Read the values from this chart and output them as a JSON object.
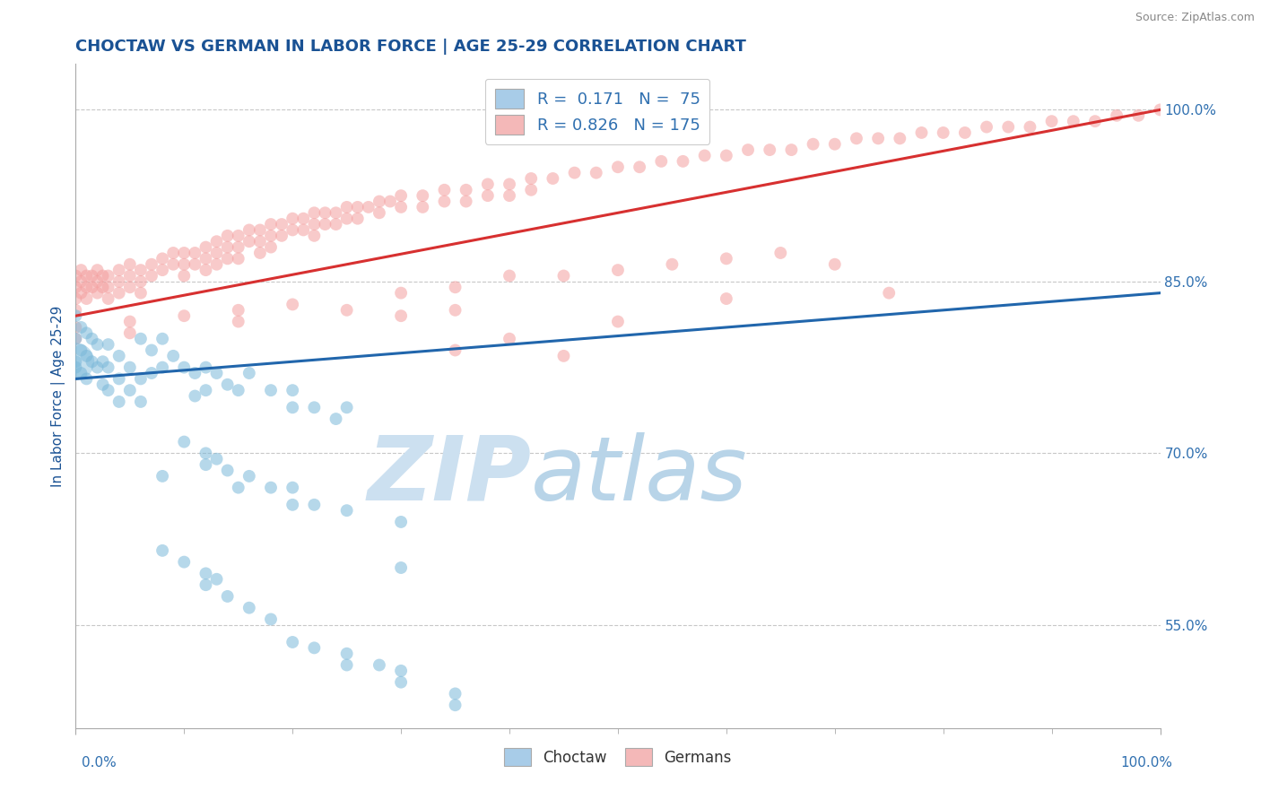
{
  "title": "CHOCTAW VS GERMAN IN LABOR FORCE | AGE 25-29 CORRELATION CHART",
  "source_text": "Source: ZipAtlas.com",
  "ylabel": "In Labor Force | Age 25-29",
  "xlim": [
    0.0,
    1.0
  ],
  "ylim": [
    0.46,
    1.04
  ],
  "yticks": [
    0.55,
    0.7,
    0.85,
    1.0
  ],
  "ytick_labels": [
    "55.0%",
    "70.0%",
    "85.0%",
    "100.0%"
  ],
  "xtick_labels": [
    "0.0%",
    "100.0%"
  ],
  "xticks": [
    0.0,
    1.0
  ],
  "choctaw_R": 0.171,
  "choctaw_N": 75,
  "german_R": 0.826,
  "german_N": 175,
  "choctaw_color": "#7ab8d9",
  "german_color": "#f4a0a0",
  "choctaw_line_color": "#2166ac",
  "german_line_color": "#d73030",
  "choctaw_legend_color": "#a8cce8",
  "german_legend_color": "#f4b8b8",
  "watermark_zip": "ZIP",
  "watermark_atlas": "atlas",
  "watermark_color": "#cce0f0",
  "background_color": "#ffffff",
  "grid_color": "#c8c8c8",
  "title_color": "#1a5294",
  "axis_label_color": "#1a5294",
  "tick_label_color": "#3070b0",
  "legend_text_color": "#3070b0",
  "choctaw_scatter": [
    [
      0.0,
      0.82
    ],
    [
      0.0,
      0.8
    ],
    [
      0.0,
      0.78
    ],
    [
      0.0,
      0.775
    ],
    [
      0.005,
      0.81
    ],
    [
      0.005,
      0.79
    ],
    [
      0.005,
      0.77
    ],
    [
      0.01,
      0.805
    ],
    [
      0.01,
      0.785
    ],
    [
      0.01,
      0.765
    ],
    [
      0.015,
      0.8
    ],
    [
      0.015,
      0.78
    ],
    [
      0.02,
      0.795
    ],
    [
      0.02,
      0.775
    ],
    [
      0.025,
      0.78
    ],
    [
      0.025,
      0.76
    ],
    [
      0.03,
      0.795
    ],
    [
      0.03,
      0.775
    ],
    [
      0.03,
      0.755
    ],
    [
      0.04,
      0.785
    ],
    [
      0.04,
      0.765
    ],
    [
      0.04,
      0.745
    ],
    [
      0.05,
      0.775
    ],
    [
      0.05,
      0.755
    ],
    [
      0.06,
      0.8
    ],
    [
      0.06,
      0.765
    ],
    [
      0.06,
      0.745
    ],
    [
      0.07,
      0.79
    ],
    [
      0.07,
      0.77
    ],
    [
      0.08,
      0.8
    ],
    [
      0.08,
      0.775
    ],
    [
      0.09,
      0.785
    ],
    [
      0.1,
      0.775
    ],
    [
      0.11,
      0.77
    ],
    [
      0.11,
      0.75
    ],
    [
      0.12,
      0.775
    ],
    [
      0.12,
      0.755
    ],
    [
      0.13,
      0.77
    ],
    [
      0.14,
      0.76
    ],
    [
      0.15,
      0.755
    ],
    [
      0.16,
      0.77
    ],
    [
      0.18,
      0.755
    ],
    [
      0.2,
      0.755
    ],
    [
      0.2,
      0.74
    ],
    [
      0.22,
      0.74
    ],
    [
      0.24,
      0.73
    ],
    [
      0.25,
      0.74
    ],
    [
      0.08,
      0.68
    ],
    [
      0.1,
      0.71
    ],
    [
      0.12,
      0.7
    ],
    [
      0.12,
      0.69
    ],
    [
      0.13,
      0.695
    ],
    [
      0.14,
      0.685
    ],
    [
      0.15,
      0.67
    ],
    [
      0.16,
      0.68
    ],
    [
      0.18,
      0.67
    ],
    [
      0.2,
      0.67
    ],
    [
      0.2,
      0.655
    ],
    [
      0.22,
      0.655
    ],
    [
      0.25,
      0.65
    ],
    [
      0.3,
      0.64
    ],
    [
      0.3,
      0.6
    ],
    [
      0.08,
      0.615
    ],
    [
      0.1,
      0.605
    ],
    [
      0.12,
      0.595
    ],
    [
      0.12,
      0.585
    ],
    [
      0.13,
      0.59
    ],
    [
      0.14,
      0.575
    ],
    [
      0.16,
      0.565
    ],
    [
      0.18,
      0.555
    ],
    [
      0.2,
      0.535
    ],
    [
      0.22,
      0.53
    ],
    [
      0.25,
      0.525
    ],
    [
      0.25,
      0.515
    ],
    [
      0.28,
      0.515
    ],
    [
      0.3,
      0.51
    ],
    [
      0.3,
      0.5
    ],
    [
      0.35,
      0.49
    ],
    [
      0.35,
      0.48
    ]
  ],
  "german_scatter": [
    [
      0.0,
      0.855
    ],
    [
      0.0,
      0.845
    ],
    [
      0.0,
      0.835
    ],
    [
      0.0,
      0.825
    ],
    [
      0.005,
      0.86
    ],
    [
      0.005,
      0.85
    ],
    [
      0.005,
      0.84
    ],
    [
      0.01,
      0.855
    ],
    [
      0.01,
      0.845
    ],
    [
      0.01,
      0.835
    ],
    [
      0.015,
      0.855
    ],
    [
      0.015,
      0.845
    ],
    [
      0.02,
      0.86
    ],
    [
      0.02,
      0.85
    ],
    [
      0.02,
      0.84
    ],
    [
      0.025,
      0.855
    ],
    [
      0.025,
      0.845
    ],
    [
      0.03,
      0.855
    ],
    [
      0.03,
      0.845
    ],
    [
      0.03,
      0.835
    ],
    [
      0.04,
      0.86
    ],
    [
      0.04,
      0.85
    ],
    [
      0.04,
      0.84
    ],
    [
      0.05,
      0.865
    ],
    [
      0.05,
      0.855
    ],
    [
      0.05,
      0.845
    ],
    [
      0.06,
      0.86
    ],
    [
      0.06,
      0.85
    ],
    [
      0.06,
      0.84
    ],
    [
      0.07,
      0.865
    ],
    [
      0.07,
      0.855
    ],
    [
      0.08,
      0.87
    ],
    [
      0.08,
      0.86
    ],
    [
      0.09,
      0.875
    ],
    [
      0.09,
      0.865
    ],
    [
      0.1,
      0.875
    ],
    [
      0.1,
      0.865
    ],
    [
      0.1,
      0.855
    ],
    [
      0.11,
      0.875
    ],
    [
      0.11,
      0.865
    ],
    [
      0.12,
      0.88
    ],
    [
      0.12,
      0.87
    ],
    [
      0.12,
      0.86
    ],
    [
      0.13,
      0.885
    ],
    [
      0.13,
      0.875
    ],
    [
      0.13,
      0.865
    ],
    [
      0.14,
      0.89
    ],
    [
      0.14,
      0.88
    ],
    [
      0.14,
      0.87
    ],
    [
      0.15,
      0.89
    ],
    [
      0.15,
      0.88
    ],
    [
      0.15,
      0.87
    ],
    [
      0.16,
      0.895
    ],
    [
      0.16,
      0.885
    ],
    [
      0.17,
      0.895
    ],
    [
      0.17,
      0.885
    ],
    [
      0.17,
      0.875
    ],
    [
      0.18,
      0.9
    ],
    [
      0.18,
      0.89
    ],
    [
      0.18,
      0.88
    ],
    [
      0.19,
      0.9
    ],
    [
      0.19,
      0.89
    ],
    [
      0.2,
      0.905
    ],
    [
      0.2,
      0.895
    ],
    [
      0.21,
      0.905
    ],
    [
      0.21,
      0.895
    ],
    [
      0.22,
      0.91
    ],
    [
      0.22,
      0.9
    ],
    [
      0.22,
      0.89
    ],
    [
      0.23,
      0.91
    ],
    [
      0.23,
      0.9
    ],
    [
      0.24,
      0.91
    ],
    [
      0.24,
      0.9
    ],
    [
      0.25,
      0.915
    ],
    [
      0.25,
      0.905
    ],
    [
      0.26,
      0.915
    ],
    [
      0.26,
      0.905
    ],
    [
      0.27,
      0.915
    ],
    [
      0.28,
      0.92
    ],
    [
      0.28,
      0.91
    ],
    [
      0.29,
      0.92
    ],
    [
      0.3,
      0.925
    ],
    [
      0.3,
      0.915
    ],
    [
      0.32,
      0.925
    ],
    [
      0.32,
      0.915
    ],
    [
      0.34,
      0.93
    ],
    [
      0.34,
      0.92
    ],
    [
      0.36,
      0.93
    ],
    [
      0.36,
      0.92
    ],
    [
      0.38,
      0.935
    ],
    [
      0.38,
      0.925
    ],
    [
      0.4,
      0.935
    ],
    [
      0.4,
      0.925
    ],
    [
      0.42,
      0.94
    ],
    [
      0.42,
      0.93
    ],
    [
      0.44,
      0.94
    ],
    [
      0.46,
      0.945
    ],
    [
      0.48,
      0.945
    ],
    [
      0.5,
      0.95
    ],
    [
      0.52,
      0.95
    ],
    [
      0.54,
      0.955
    ],
    [
      0.56,
      0.955
    ],
    [
      0.58,
      0.96
    ],
    [
      0.6,
      0.96
    ],
    [
      0.62,
      0.965
    ],
    [
      0.64,
      0.965
    ],
    [
      0.66,
      0.965
    ],
    [
      0.68,
      0.97
    ],
    [
      0.7,
      0.97
    ],
    [
      0.72,
      0.975
    ],
    [
      0.74,
      0.975
    ],
    [
      0.76,
      0.975
    ],
    [
      0.78,
      0.98
    ],
    [
      0.8,
      0.98
    ],
    [
      0.82,
      0.98
    ],
    [
      0.84,
      0.985
    ],
    [
      0.86,
      0.985
    ],
    [
      0.88,
      0.985
    ],
    [
      0.9,
      0.99
    ],
    [
      0.92,
      0.99
    ],
    [
      0.94,
      0.99
    ],
    [
      0.96,
      0.995
    ],
    [
      0.98,
      0.995
    ],
    [
      1.0,
      1.0
    ],
    [
      0.3,
      0.84
    ],
    [
      0.3,
      0.82
    ],
    [
      0.35,
      0.845
    ],
    [
      0.35,
      0.825
    ],
    [
      0.4,
      0.855
    ],
    [
      0.45,
      0.855
    ],
    [
      0.5,
      0.86
    ],
    [
      0.55,
      0.865
    ],
    [
      0.6,
      0.87
    ],
    [
      0.65,
      0.875
    ],
    [
      0.7,
      0.865
    ],
    [
      0.75,
      0.84
    ],
    [
      0.6,
      0.835
    ],
    [
      0.5,
      0.815
    ],
    [
      0.0,
      0.81
    ],
    [
      0.0,
      0.8
    ],
    [
      0.05,
      0.815
    ],
    [
      0.05,
      0.805
    ],
    [
      0.1,
      0.82
    ],
    [
      0.15,
      0.825
    ],
    [
      0.15,
      0.815
    ],
    [
      0.2,
      0.83
    ],
    [
      0.25,
      0.825
    ],
    [
      0.35,
      0.79
    ],
    [
      0.4,
      0.8
    ],
    [
      0.45,
      0.785
    ]
  ],
  "choctaw_line": {
    "x0": 0.0,
    "y0": 0.765,
    "x1": 1.0,
    "y1": 0.84
  },
  "german_line": {
    "x0": 0.0,
    "y0": 0.82,
    "x1": 1.0,
    "y1": 1.0
  }
}
